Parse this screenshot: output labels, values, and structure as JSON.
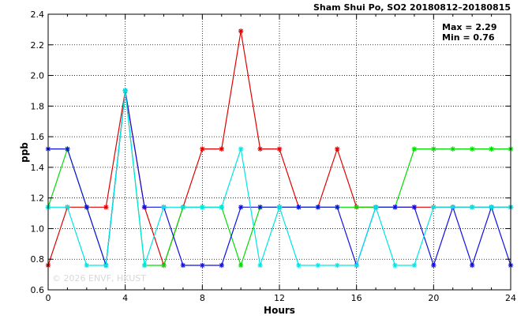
{
  "chart_data": {
    "type": "line",
    "title": "Sham Shui Po, SO2 20180812–20180815",
    "xlabel": "Hours",
    "ylabel": "ppb",
    "xlim": [
      0,
      24
    ],
    "ylim": [
      0.6,
      2.4
    ],
    "xticks": [
      0,
      4,
      8,
      12,
      16,
      20,
      24
    ],
    "yticks": [
      0.6,
      0.8,
      1.0,
      1.2,
      1.4,
      1.6,
      1.8,
      2.0,
      2.2,
      2.4
    ],
    "grid": true,
    "annotations": [
      "Max = 2.29",
      "Min = 0.76"
    ],
    "watermark": "© 2026  ENVF, HKUST",
    "series": [
      {
        "color": "#e00000",
        "values": [
          0.76,
          1.14,
          1.14,
          1.14,
          1.9,
          1.14,
          0.76,
          1.14,
          1.52,
          1.52,
          2.29,
          1.52,
          1.52,
          1.14,
          1.14,
          1.52,
          1.14,
          1.14,
          1.14,
          1.14,
          1.14,
          1.14,
          1.14,
          1.14,
          1.14
        ]
      },
      {
        "color": "#00dd00",
        "values": [
          1.14,
          1.52,
          1.14,
          0.76,
          1.9,
          0.76,
          0.76,
          1.14,
          1.14,
          1.14,
          0.76,
          1.14,
          1.14,
          1.14,
          1.14,
          1.14,
          1.14,
          1.14,
          1.14,
          1.52,
          1.52,
          1.52,
          1.52,
          1.52,
          1.52
        ]
      },
      {
        "color": "#1010e0",
        "values": [
          1.52,
          1.52,
          1.14,
          0.76,
          1.9,
          1.14,
          1.14,
          0.76,
          0.76,
          0.76,
          1.14,
          1.14,
          1.14,
          1.14,
          1.14,
          1.14,
          0.76,
          1.14,
          1.14,
          1.14,
          0.76,
          1.14,
          0.76,
          1.14,
          0.76
        ]
      },
      {
        "color": "#00e5e5",
        "values": [
          1.14,
          1.14,
          0.76,
          0.76,
          1.9,
          0.76,
          1.14,
          1.14,
          1.14,
          1.14,
          1.52,
          0.76,
          1.14,
          0.76,
          0.76,
          0.76,
          0.76,
          1.14,
          0.76,
          0.76,
          1.14,
          1.14,
          1.14,
          1.14,
          1.14
        ]
      }
    ]
  }
}
